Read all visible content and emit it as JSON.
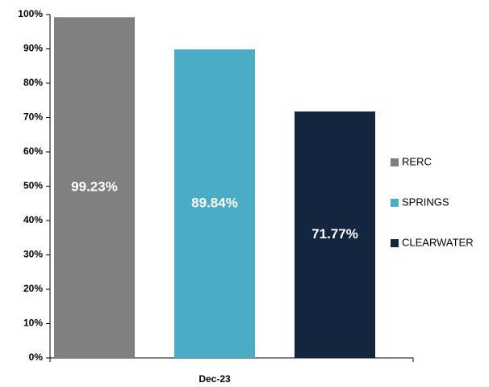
{
  "chart_data": {
    "type": "bar",
    "categories": [
      "Dec-23"
    ],
    "series": [
      {
        "name": "RERC",
        "color": "#808080",
        "values": [
          99.23
        ],
        "value_labels": [
          "99.23%"
        ]
      },
      {
        "name": "SPRINGS",
        "color": "#4bacc6",
        "values": [
          89.84
        ],
        "value_labels": [
          "89.84%"
        ]
      },
      {
        "name": "CLEARWATER",
        "color": "#14253f",
        "values": [
          71.77
        ],
        "value_labels": [
          "71.77%"
        ]
      }
    ],
    "ylim": [
      0,
      100
    ],
    "yticks": [
      {
        "value": 0,
        "label": "0%"
      },
      {
        "value": 10,
        "label": "10%"
      },
      {
        "value": 20,
        "label": "20%"
      },
      {
        "value": 30,
        "label": "30%"
      },
      {
        "value": 40,
        "label": "40%"
      },
      {
        "value": 50,
        "label": "50%"
      },
      {
        "value": 60,
        "label": "60%"
      },
      {
        "value": 70,
        "label": "70%"
      },
      {
        "value": 80,
        "label": "80%"
      },
      {
        "value": 90,
        "label": "90%"
      },
      {
        "value": 100,
        "label": "100%"
      }
    ],
    "grid": false,
    "legend": "right"
  }
}
